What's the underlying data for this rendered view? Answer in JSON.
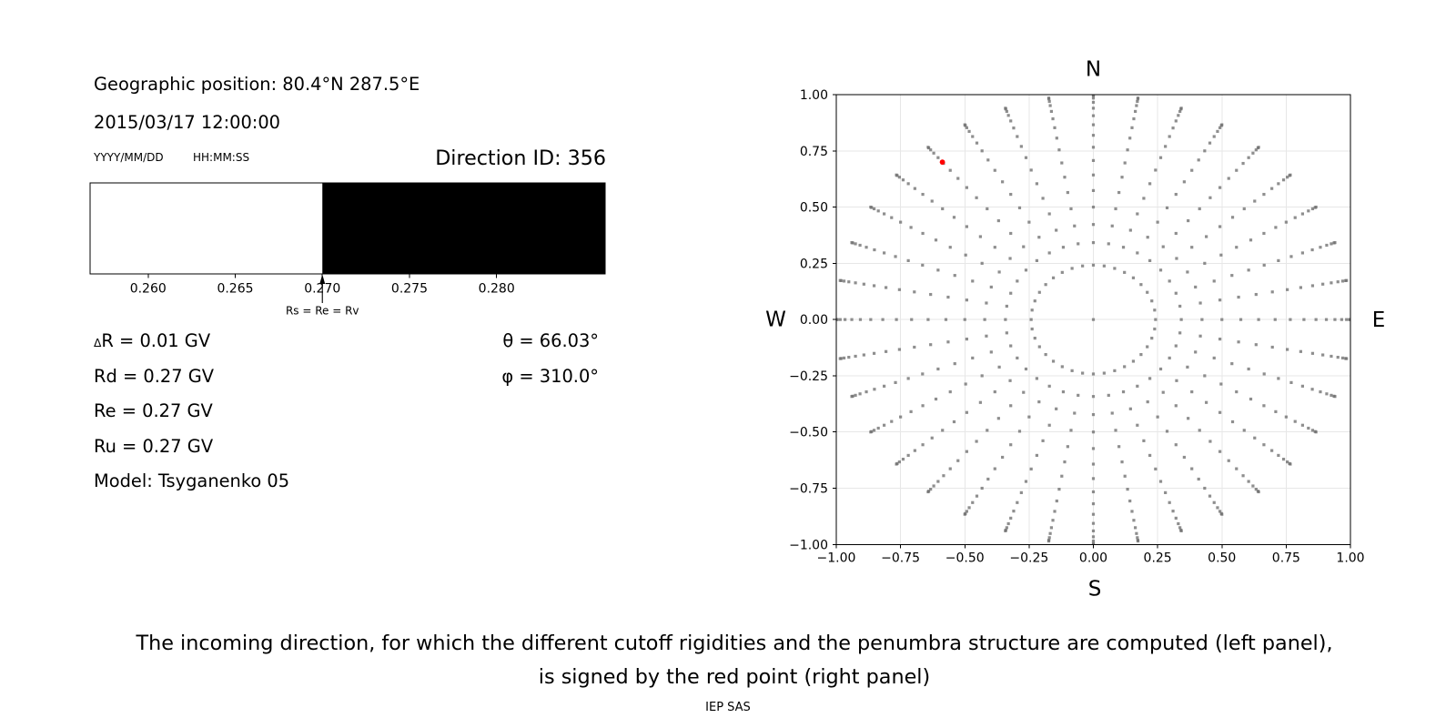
{
  "title_block": {
    "geo_position": "Geographic position: 80.4°N 287.5°E",
    "datetime": "2015/03/17 12:00:00",
    "date_format_label": "YYYY/MM/DD",
    "time_format_label": "HH:MM:SS",
    "direction_id_label": "Direction ID: 356"
  },
  "penumbra_panel": {
    "arrow_label": "Rs = Re = Rv",
    "tick_labels": [
      "0.260",
      "0.265",
      "0.270",
      "0.275",
      "0.280"
    ],
    "params": {
      "delta_sym": "Δ",
      "delta_rest": "R = 0.01 GV",
      "rows": [
        "Rd = 0.27 GV",
        "Re = 0.27 GV",
        "Ru = 0.27 GV",
        "Model: Tsyganenko 05"
      ]
    },
    "angles": [
      "θ = 66.03°",
      "φ = 310.0°"
    ]
  },
  "direction_panel": {
    "labels": {
      "north": "N",
      "south": "S",
      "east": "E",
      "west": "W"
    },
    "x_tick_labels": [
      "−1.00",
      "−0.75",
      "−0.50",
      "−0.25",
      "0.00",
      "0.25",
      "0.50",
      "0.75",
      "1.00"
    ],
    "y_tick_labels": [
      "−1.00",
      "−0.75",
      "−0.50",
      "−0.25",
      "0.00",
      "0.25",
      "0.50",
      "0.75",
      "1.00"
    ]
  },
  "caption": {
    "line1": "The incoming direction, for which the different cutoff rigidities and the penumbra structure are computed (left panel),",
    "line2": "is signed by the red point (right panel)",
    "credit": "IEP SAS"
  },
  "chart_data": [
    {
      "type": "area",
      "name": "penumbra-structure",
      "x_unit": "GV",
      "xlim": [
        0.25667,
        0.28623
      ],
      "x_ticks": [
        0.26,
        0.265,
        0.27,
        0.275,
        0.28
      ],
      "boundary": 0.27,
      "regions": [
        {
          "x0": 0.25667,
          "x1": 0.27,
          "state": "allowed",
          "color": "#ffffff"
        },
        {
          "x0": 0.27,
          "x1": 0.28623,
          "state": "forbidden",
          "color": "#000000"
        }
      ],
      "annotation": {
        "text": "Rs = Re = Rv",
        "x": 0.27
      },
      "values": {
        "delta_R_GV": 0.01,
        "Rd_GV": 0.27,
        "Re_GV": 0.27,
        "Ru_GV": 0.27,
        "model": "Tsyganenko 05"
      }
    },
    {
      "type": "scatter",
      "name": "incoming-direction-grid",
      "xlim": [
        -1,
        1
      ],
      "ylim": [
        -1,
        1
      ],
      "ticks": [
        -1,
        -0.75,
        -0.5,
        -0.25,
        0,
        0.25,
        0.5,
        0.75,
        1
      ],
      "grid": true,
      "projection": "x = sin(zenith)*cos(azimuth-180), y = sin(zenith)*sin(azimuth-180)",
      "grid_points": {
        "rays": {
          "azimuth_start_deg": 0,
          "azimuth_step_deg": 10,
          "azimuth_count": 36,
          "zenith_deg": [
            20,
            25,
            30,
            35,
            40,
            45,
            50,
            55,
            60,
            65,
            70,
            75,
            80,
            85,
            90
          ]
        },
        "inner_ring": {
          "radius": 0.242,
          "n_points": 36
        },
        "center_point": true,
        "color": "#6e6e6e"
      },
      "red_point": {
        "zenith_deg": 66.03,
        "azimuth_deg": 310.0,
        "x": -0.587,
        "y": 0.7,
        "color": "#ff0000"
      }
    }
  ]
}
